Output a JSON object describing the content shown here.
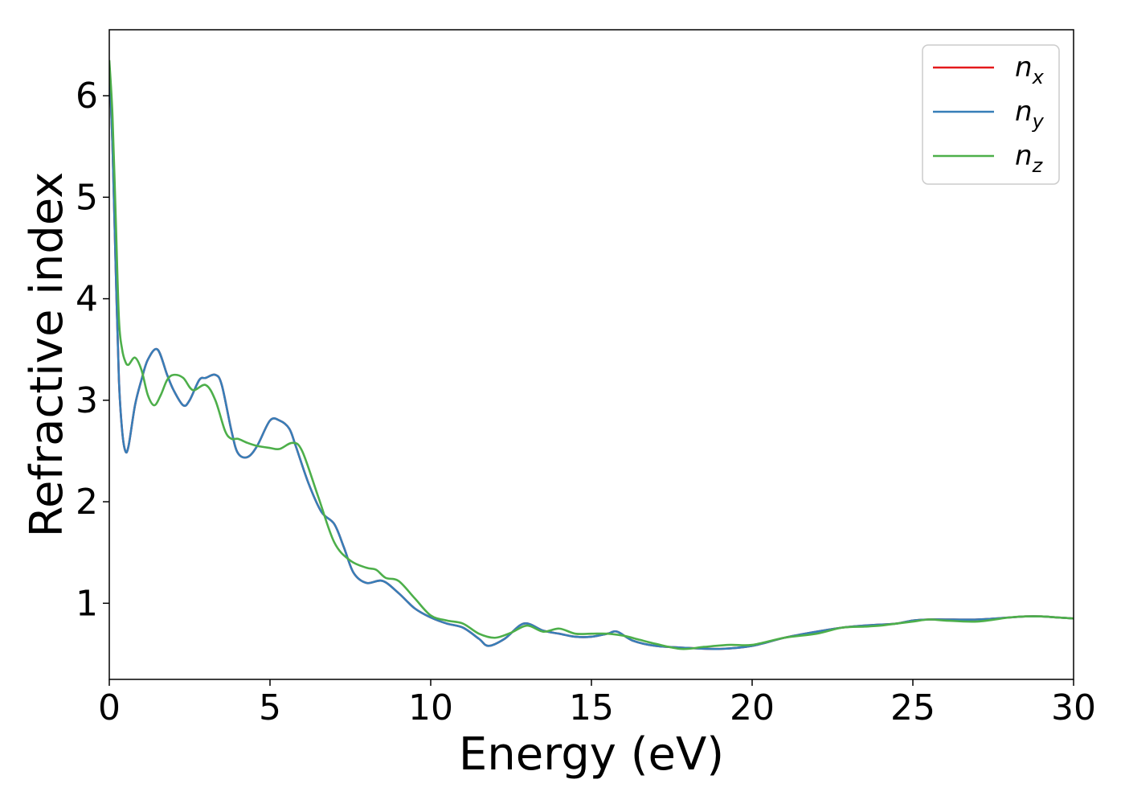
{
  "chart_data": {
    "type": "line",
    "title": "",
    "xlabel": "Energy (eV)",
    "ylabel": "Refractive index",
    "xlim": [
      0,
      30
    ],
    "ylim": [
      0.25,
      6.65
    ],
    "xticks": [
      0,
      5,
      10,
      15,
      20,
      25,
      30
    ],
    "xtick_labels": [
      "0",
      "5",
      "10",
      "15",
      "20",
      "25",
      "30"
    ],
    "yticks": [
      1,
      2,
      3,
      4,
      5,
      6
    ],
    "ytick_labels": [
      "1",
      "2",
      "3",
      "4",
      "5",
      "6"
    ],
    "grid": false,
    "legend_position": "top-right",
    "series": [
      {
        "name": "n",
        "subscript": "x",
        "color": "#e41a1c",
        "x": [
          0,
          0.1,
          0.2,
          0.3,
          0.4,
          0.5,
          0.6,
          0.8,
          1.0,
          1.2,
          1.5,
          1.8,
          2.0,
          2.3,
          2.5,
          2.8,
          3.0,
          3.3,
          3.5,
          3.8,
          4.0,
          4.3,
          4.6,
          5.0,
          5.3,
          5.6,
          5.8,
          6.2,
          6.6,
          7.0,
          7.3,
          7.6,
          8.0,
          8.5,
          9.0,
          9.5,
          10.0,
          10.5,
          11.0,
          11.5,
          11.8,
          12.3,
          12.9,
          13.5,
          14.0,
          14.5,
          15.0,
          15.5,
          15.8,
          16.3,
          17.0,
          18.0,
          19.0,
          20.0,
          21.0,
          22.0,
          22.8,
          23.5,
          24.0,
          24.5,
          25.0,
          25.5,
          26.0,
          27.0,
          28.0,
          28.5,
          29.0,
          29.5,
          30.0
        ],
        "y": [
          6.3,
          5.5,
          4.3,
          3.2,
          2.7,
          2.5,
          2.55,
          2.95,
          3.2,
          3.4,
          3.5,
          3.25,
          3.1,
          2.95,
          3.0,
          3.2,
          3.22,
          3.25,
          3.15,
          2.7,
          2.48,
          2.44,
          2.55,
          2.8,
          2.8,
          2.72,
          2.55,
          2.18,
          1.9,
          1.78,
          1.55,
          1.3,
          1.2,
          1.22,
          1.1,
          0.95,
          0.86,
          0.8,
          0.76,
          0.65,
          0.58,
          0.65,
          0.8,
          0.73,
          0.7,
          0.67,
          0.67,
          0.7,
          0.72,
          0.63,
          0.58,
          0.56,
          0.55,
          0.58,
          0.66,
          0.72,
          0.76,
          0.78,
          0.79,
          0.8,
          0.83,
          0.84,
          0.84,
          0.84,
          0.86,
          0.87,
          0.87,
          0.86,
          0.85
        ]
      },
      {
        "name": "n",
        "subscript": "y",
        "color": "#377eb8",
        "x": [
          0,
          0.1,
          0.2,
          0.3,
          0.4,
          0.5,
          0.6,
          0.8,
          1.0,
          1.2,
          1.5,
          1.8,
          2.0,
          2.3,
          2.5,
          2.8,
          3.0,
          3.3,
          3.5,
          3.8,
          4.0,
          4.3,
          4.6,
          5.0,
          5.3,
          5.6,
          5.8,
          6.2,
          6.6,
          7.0,
          7.3,
          7.6,
          8.0,
          8.5,
          9.0,
          9.5,
          10.0,
          10.5,
          11.0,
          11.5,
          11.8,
          12.3,
          12.9,
          13.5,
          14.0,
          14.5,
          15.0,
          15.5,
          15.8,
          16.3,
          17.0,
          18.0,
          19.0,
          20.0,
          21.0,
          22.0,
          22.8,
          23.5,
          24.0,
          24.5,
          25.0,
          25.5,
          26.0,
          27.0,
          28.0,
          28.5,
          29.0,
          29.5,
          30.0
        ],
        "y": [
          6.3,
          5.5,
          4.3,
          3.2,
          2.7,
          2.5,
          2.55,
          2.95,
          3.2,
          3.4,
          3.5,
          3.25,
          3.1,
          2.95,
          3.0,
          3.2,
          3.22,
          3.25,
          3.15,
          2.7,
          2.48,
          2.44,
          2.55,
          2.8,
          2.8,
          2.72,
          2.55,
          2.18,
          1.9,
          1.78,
          1.55,
          1.3,
          1.2,
          1.22,
          1.1,
          0.95,
          0.86,
          0.8,
          0.76,
          0.65,
          0.58,
          0.65,
          0.8,
          0.73,
          0.7,
          0.67,
          0.67,
          0.7,
          0.72,
          0.63,
          0.58,
          0.56,
          0.55,
          0.58,
          0.66,
          0.72,
          0.76,
          0.78,
          0.79,
          0.8,
          0.83,
          0.84,
          0.84,
          0.84,
          0.86,
          0.87,
          0.87,
          0.86,
          0.85
        ]
      },
      {
        "name": "n",
        "subscript": "z",
        "color": "#4daf4a",
        "x": [
          0,
          0.1,
          0.2,
          0.3,
          0.4,
          0.5,
          0.6,
          0.8,
          1.0,
          1.2,
          1.4,
          1.6,
          1.8,
          2.0,
          2.3,
          2.6,
          3.0,
          3.3,
          3.6,
          3.8,
          4.0,
          4.3,
          4.6,
          5.0,
          5.3,
          5.7,
          6.0,
          6.5,
          7.0,
          7.5,
          8.0,
          8.3,
          8.6,
          9.0,
          9.5,
          10.0,
          10.5,
          11.0,
          11.5,
          12.0,
          12.5,
          13.0,
          13.5,
          14.0,
          14.5,
          15.0,
          15.5,
          16.0,
          16.5,
          17.0,
          17.8,
          18.5,
          19.3,
          20.0,
          21.0,
          22.0,
          22.8,
          23.5,
          24.0,
          24.5,
          25.0,
          25.5,
          26.0,
          27.0,
          28.0,
          28.5,
          29.0,
          29.5,
          30.0
        ],
        "y": [
          6.35,
          5.8,
          4.8,
          3.8,
          3.5,
          3.38,
          3.35,
          3.42,
          3.3,
          3.05,
          2.95,
          3.05,
          3.2,
          3.25,
          3.22,
          3.1,
          3.15,
          3.0,
          2.7,
          2.62,
          2.62,
          2.58,
          2.55,
          2.53,
          2.52,
          2.58,
          2.5,
          2.05,
          1.6,
          1.42,
          1.35,
          1.33,
          1.25,
          1.22,
          1.05,
          0.88,
          0.83,
          0.8,
          0.7,
          0.66,
          0.71,
          0.78,
          0.72,
          0.75,
          0.7,
          0.7,
          0.7,
          0.68,
          0.64,
          0.6,
          0.55,
          0.57,
          0.59,
          0.59,
          0.66,
          0.7,
          0.76,
          0.77,
          0.78,
          0.8,
          0.82,
          0.84,
          0.83,
          0.82,
          0.86,
          0.87,
          0.87,
          0.86,
          0.85
        ]
      }
    ]
  }
}
